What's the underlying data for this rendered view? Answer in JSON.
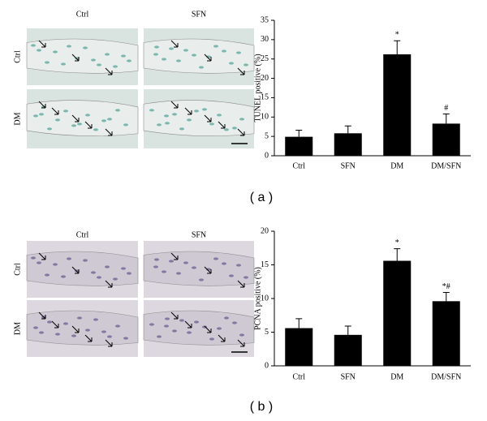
{
  "panels": [
    {
      "label": "( a )",
      "image_columns": [
        "Ctrl",
        "SFN"
      ],
      "image_rows": [
        "Ctrl",
        "DM"
      ]
    },
    {
      "label": "( b )",
      "image_columns": [
        "Ctrl",
        "SFN"
      ],
      "image_rows": [
        "Ctrl",
        "DM"
      ]
    }
  ],
  "chart_data": [
    {
      "type": "bar",
      "y_label": "TUNEL positive (%)",
      "categories": [
        "Ctrl",
        "SFN",
        "DM",
        "DM/SFN"
      ],
      "series": [
        {
          "color": "#000000",
          "values": [
            4.9,
            5.8,
            26.2,
            8.3
          ],
          "errors": [
            1.7,
            1.9,
            3.5,
            2.5
          ]
        }
      ],
      "annotations": [
        null,
        null,
        "*",
        "#"
      ],
      "ylim": [
        0,
        35
      ],
      "yticks": [
        0,
        5,
        10,
        15,
        20,
        25,
        30,
        35
      ]
    },
    {
      "type": "bar",
      "y_label": "PCNA positive (%)",
      "categories": [
        "Ctrl",
        "SFN",
        "DM",
        "DM/SFN"
      ],
      "series": [
        {
          "color": "#000000",
          "values": [
            5.6,
            4.6,
            15.6,
            9.6
          ],
          "errors": [
            1.4,
            1.3,
            1.8,
            1.3
          ]
        }
      ],
      "annotations": [
        null,
        null,
        "*",
        "*#"
      ],
      "ylim": [
        0,
        20
      ],
      "yticks": [
        0,
        5,
        10,
        15,
        20
      ]
    }
  ]
}
